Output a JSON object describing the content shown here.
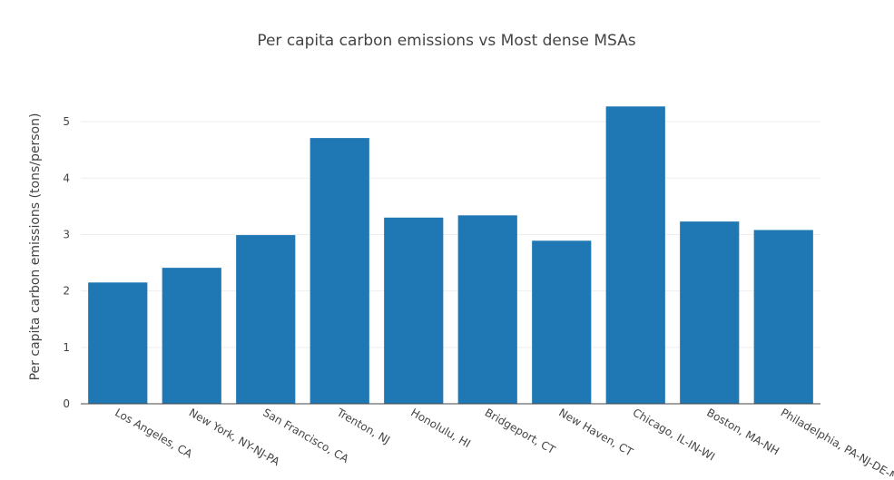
{
  "chart_data": {
    "type": "bar",
    "title": "Per capita carbon emissions vs Most dense MSAs",
    "xlabel": "",
    "ylabel": "Per capita carbon emissions (tons/person)",
    "categories": [
      "Los Angeles, CA",
      "New York, NY-NJ-PA",
      "San Francisco, CA",
      "Trenton, NJ",
      "Honolulu, HI",
      "Bridgeport, CT",
      "New Haven, CT",
      "Chicago, IL-IN-WI",
      "Boston, MA-NH",
      "Philadelphia, PA-NJ-DE-MD"
    ],
    "values": [
      2.15,
      2.41,
      2.99,
      4.71,
      3.3,
      3.34,
      2.89,
      5.27,
      3.23,
      3.08
    ],
    "ylim": [
      0,
      5.5
    ],
    "yticks": [
      0,
      1,
      2,
      3,
      4,
      5
    ],
    "grid": true,
    "legend": "none",
    "colors": {
      "bar": "#1f77b4",
      "grid": "#eeeeee",
      "axis_line": "#444444",
      "text": "#444444"
    }
  }
}
